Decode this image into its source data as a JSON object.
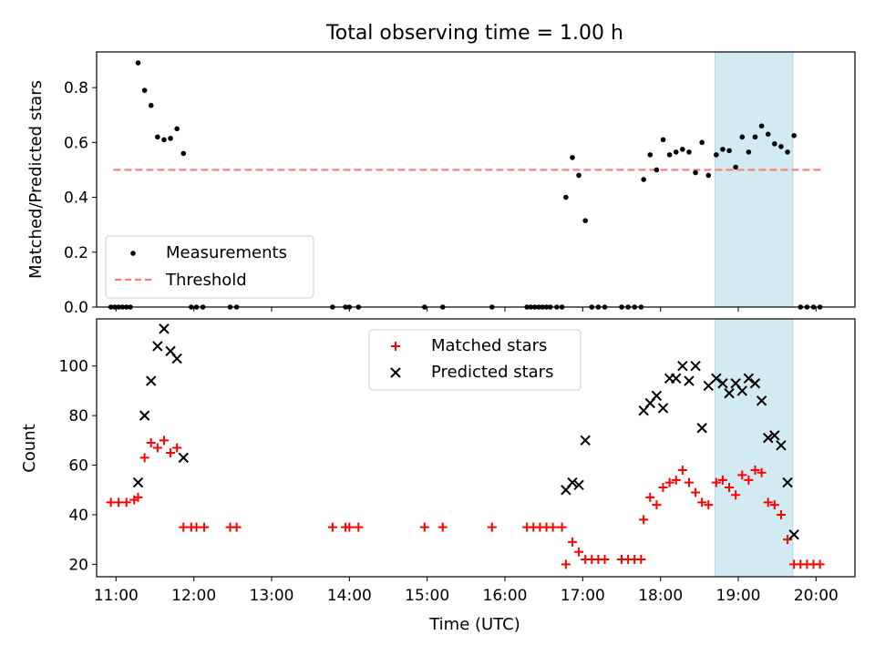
{
  "title": "Total observing time = 1.00 h",
  "colors": {
    "measurements": "#000000",
    "threshold": "#ff7a7a",
    "matched": "#ff0000",
    "predicted": "#000000",
    "highlight": "#add8e6"
  },
  "chart_data": [
    {
      "type": "scatter",
      "panel": "top",
      "ylabel": "Matched/Predicted stars",
      "xlabel": "",
      "xlim": [
        "10:45",
        "20:30"
      ],
      "ylim": [
        0,
        0.93
      ],
      "y_ticks": [
        0,
        0.2,
        0.4,
        0.6,
        0.8
      ],
      "y_tick_labels": [
        "0.0",
        "0.2",
        "0.4",
        "0.6",
        "0.8"
      ],
      "x_ticks": [
        "11:00",
        "12:00",
        "13:00",
        "14:00",
        "15:00",
        "16:00",
        "17:00",
        "18:00",
        "19:00",
        "20:00"
      ],
      "x_tick_labels_shown": false,
      "highlight_span": [
        "18:42",
        "19:42"
      ],
      "legend": {
        "placement": "lower-left",
        "entries": [
          "Measurements",
          "Threshold"
        ]
      },
      "series": [
        {
          "name": "Measurements",
          "marker": "dot",
          "points": [
            [
              "10:56",
              0
            ],
            [
              "10:59",
              0
            ],
            [
              "11:02",
              0
            ],
            [
              "11:05",
              0
            ],
            [
              "11:08",
              0
            ],
            [
              "11:11",
              0
            ],
            [
              "11:17",
              0.89
            ],
            [
              "11:22",
              0.79
            ],
            [
              "11:27",
              0.735
            ],
            [
              "11:32",
              0.62
            ],
            [
              "11:37",
              0.61
            ],
            [
              "11:42",
              0.615
            ],
            [
              "11:47",
              0.65
            ],
            [
              "11:52",
              0.56
            ],
            [
              "11:58",
              0
            ],
            [
              "12:02",
              0
            ],
            [
              "12:07",
              0
            ],
            [
              "12:28",
              0
            ],
            [
              "12:33",
              0
            ],
            [
              "13:47",
              0
            ],
            [
              "13:57",
              0
            ],
            [
              "14:00",
              0
            ],
            [
              "14:07",
              0
            ],
            [
              "14:58",
              0
            ],
            [
              "15:12",
              0
            ],
            [
              "15:50",
              0
            ],
            [
              "16:17",
              0
            ],
            [
              "16:20",
              0
            ],
            [
              "16:23",
              0
            ],
            [
              "16:26",
              0
            ],
            [
              "16:29",
              0
            ],
            [
              "16:32",
              0
            ],
            [
              "16:35",
              0
            ],
            [
              "16:40",
              0
            ],
            [
              "16:44",
              0
            ],
            [
              "16:47",
              0.4
            ],
            [
              "16:52",
              0.545
            ],
            [
              "16:57",
              0.48
            ],
            [
              "17:02",
              0.315
            ],
            [
              "17:07",
              0
            ],
            [
              "17:12",
              0
            ],
            [
              "17:17",
              0
            ],
            [
              "17:30",
              0
            ],
            [
              "17:35",
              0
            ],
            [
              "17:40",
              0
            ],
            [
              "17:45",
              0
            ],
            [
              "17:47",
              0.465
            ],
            [
              "17:52",
              0.555
            ],
            [
              "17:57",
              0.5
            ],
            [
              "18:02",
              0.61
            ],
            [
              "18:07",
              0.555
            ],
            [
              "18:12",
              0.565
            ],
            [
              "18:17",
              0.575
            ],
            [
              "18:22",
              0.565
            ],
            [
              "18:27",
              0.49
            ],
            [
              "18:32",
              0.6
            ],
            [
              "18:37",
              0.48
            ],
            [
              "18:43",
              0.555
            ],
            [
              "18:48",
              0.575
            ],
            [
              "18:53",
              0.57
            ],
            [
              "18:58",
              0.51
            ],
            [
              "19:03",
              0.62
            ],
            [
              "19:08",
              0.565
            ],
            [
              "19:13",
              0.62
            ],
            [
              "19:18",
              0.66
            ],
            [
              "19:23",
              0.63
            ],
            [
              "19:28",
              0.595
            ],
            [
              "19:33",
              0.585
            ],
            [
              "19:38",
              0.565
            ],
            [
              "19:43",
              0.625
            ],
            [
              "19:48",
              0
            ],
            [
              "19:53",
              0
            ],
            [
              "19:58",
              0
            ],
            [
              "20:03",
              0
            ]
          ]
        },
        {
          "name": "Threshold",
          "style": "dashed",
          "points": [
            [
              "10:58",
              0.5
            ],
            [
              "20:05",
              0.5
            ]
          ]
        }
      ]
    },
    {
      "type": "scatter",
      "panel": "bottom",
      "ylabel": "Count",
      "xlabel": "Time (UTC)",
      "xlim": [
        "10:45",
        "20:30"
      ],
      "ylim": [
        15,
        119
      ],
      "y_ticks": [
        20,
        40,
        60,
        80,
        100
      ],
      "y_tick_labels": [
        "20",
        "40",
        "60",
        "80",
        "100"
      ],
      "x_ticks": [
        "11:00",
        "12:00",
        "13:00",
        "14:00",
        "15:00",
        "16:00",
        "17:00",
        "18:00",
        "19:00",
        "20:00"
      ],
      "x_tick_labels": [
        "11:00",
        "12:00",
        "13:00",
        "14:00",
        "15:00",
        "16:00",
        "17:00",
        "18:00",
        "19:00",
        "20:00"
      ],
      "highlight_span": [
        "18:42",
        "19:42"
      ],
      "legend": {
        "placement": "upper-center",
        "entries": [
          "Matched stars",
          "Predicted stars"
        ]
      },
      "series": [
        {
          "name": "Matched stars",
          "marker": "plus",
          "points": [
            [
              "10:56",
              45
            ],
            [
              "11:02",
              45
            ],
            [
              "11:08",
              45
            ],
            [
              "11:14",
              46
            ],
            [
              "11:17",
              47
            ],
            [
              "11:22",
              63
            ],
            [
              "11:27",
              69
            ],
            [
              "11:32",
              67
            ],
            [
              "11:37",
              70
            ],
            [
              "11:42",
              65
            ],
            [
              "11:47",
              67
            ],
            [
              "11:52",
              35
            ],
            [
              "11:58",
              35
            ],
            [
              "12:02",
              35
            ],
            [
              "12:08",
              35
            ],
            [
              "12:28",
              35
            ],
            [
              "12:33",
              35
            ],
            [
              "13:47",
              35
            ],
            [
              "13:57",
              35
            ],
            [
              "14:00",
              35
            ],
            [
              "14:07",
              35
            ],
            [
              "14:58",
              35
            ],
            [
              "15:12",
              35
            ],
            [
              "15:50",
              35
            ],
            [
              "16:17",
              35
            ],
            [
              "16:22",
              35
            ],
            [
              "16:27",
              35
            ],
            [
              "16:32",
              35
            ],
            [
              "16:37",
              35
            ],
            [
              "16:44",
              35
            ],
            [
              "16:47",
              20
            ],
            [
              "16:52",
              29
            ],
            [
              "16:57",
              25
            ],
            [
              "17:02",
              22
            ],
            [
              "17:07",
              22
            ],
            [
              "17:12",
              22
            ],
            [
              "17:17",
              22
            ],
            [
              "17:30",
              22
            ],
            [
              "17:35",
              22
            ],
            [
              "17:40",
              22
            ],
            [
              "17:45",
              22
            ],
            [
              "17:47",
              38
            ],
            [
              "17:52",
              47
            ],
            [
              "17:57",
              44
            ],
            [
              "18:02",
              51
            ],
            [
              "18:07",
              53
            ],
            [
              "18:12",
              54
            ],
            [
              "18:17",
              58
            ],
            [
              "18:22",
              53
            ],
            [
              "18:27",
              49
            ],
            [
              "18:32",
              45
            ],
            [
              "18:37",
              44
            ],
            [
              "18:43",
              53
            ],
            [
              "18:48",
              54
            ],
            [
              "18:53",
              51
            ],
            [
              "18:58",
              48
            ],
            [
              "19:03",
              56
            ],
            [
              "19:08",
              54
            ],
            [
              "19:13",
              58
            ],
            [
              "19:18",
              57
            ],
            [
              "19:23",
              45
            ],
            [
              "19:28",
              44
            ],
            [
              "19:33",
              40
            ],
            [
              "19:38",
              30
            ],
            [
              "19:43",
              20
            ],
            [
              "19:48",
              20
            ],
            [
              "19:53",
              20
            ],
            [
              "19:58",
              20
            ],
            [
              "20:03",
              20
            ]
          ]
        },
        {
          "name": "Predicted stars",
          "marker": "x",
          "points": [
            [
              "11:17",
              53
            ],
            [
              "11:22",
              80
            ],
            [
              "11:27",
              94
            ],
            [
              "11:32",
              108
            ],
            [
              "11:37",
              115
            ],
            [
              "11:42",
              106
            ],
            [
              "11:47",
              103
            ],
            [
              "11:52",
              63
            ],
            [
              "16:47",
              50
            ],
            [
              "16:52",
              53
            ],
            [
              "16:57",
              52
            ],
            [
              "17:02",
              70
            ],
            [
              "17:47",
              82
            ],
            [
              "17:52",
              85
            ],
            [
              "17:57",
              88
            ],
            [
              "18:02",
              83
            ],
            [
              "18:07",
              95
            ],
            [
              "18:12",
              95
            ],
            [
              "18:17",
              100
            ],
            [
              "18:22",
              94
            ],
            [
              "18:27",
              100
            ],
            [
              "18:32",
              75
            ],
            [
              "18:37",
              92
            ],
            [
              "18:43",
              95
            ],
            [
              "18:48",
              93
            ],
            [
              "18:53",
              89
            ],
            [
              "18:58",
              93
            ],
            [
              "19:03",
              90
            ],
            [
              "19:08",
              95
            ],
            [
              "19:13",
              93
            ],
            [
              "19:18",
              86
            ],
            [
              "19:23",
              71
            ],
            [
              "19:28",
              72
            ],
            [
              "19:33",
              68
            ],
            [
              "19:38",
              53
            ],
            [
              "19:43",
              32
            ]
          ]
        }
      ]
    }
  ]
}
